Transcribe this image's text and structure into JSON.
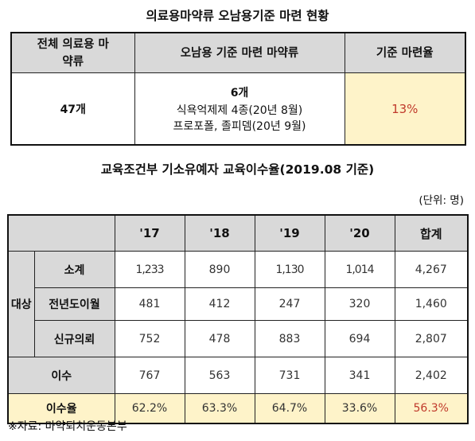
{
  "title1": "의료용마약류 오남용기준 마련 현황",
  "table1": {
    "headers": [
      "전체 의료용 마약류",
      "오남용 기준 마련 마약류",
      "기준 마련율"
    ],
    "total": "47개",
    "count": "6개",
    "line1": "식욕억제제 4종(20년 8월)",
    "line2": "프로포폴, 졸피뎀(20년 9월)",
    "rate": "13%"
  },
  "title2": "교육조건부 기소유예자 교육이수율(2019.08 기준)",
  "unit": "(단위: 명)",
  "table2": {
    "years": [
      "'17",
      "'18",
      "'19",
      "'20",
      "합계"
    ],
    "group_label": "대상",
    "rows": [
      {
        "label": "소계",
        "values": [
          "1,233",
          "890",
          "1,130",
          "1,014",
          "4,267"
        ]
      },
      {
        "label": "전년도이월",
        "values": [
          "481",
          "412",
          "247",
          "320",
          "1,460"
        ]
      },
      {
        "label": "신규의뢰",
        "values": [
          "752",
          "478",
          "883",
          "694",
          "2,807"
        ]
      },
      {
        "label": "이수",
        "values": [
          "767",
          "563",
          "731",
          "341",
          "2,402"
        ]
      },
      {
        "label": "이수율",
        "values": [
          "62.2%",
          "63.3%",
          "64.7%",
          "33.6%",
          "56.3%"
        ]
      }
    ]
  },
  "footnote": "※자료: 마약퇴치운동본부"
}
